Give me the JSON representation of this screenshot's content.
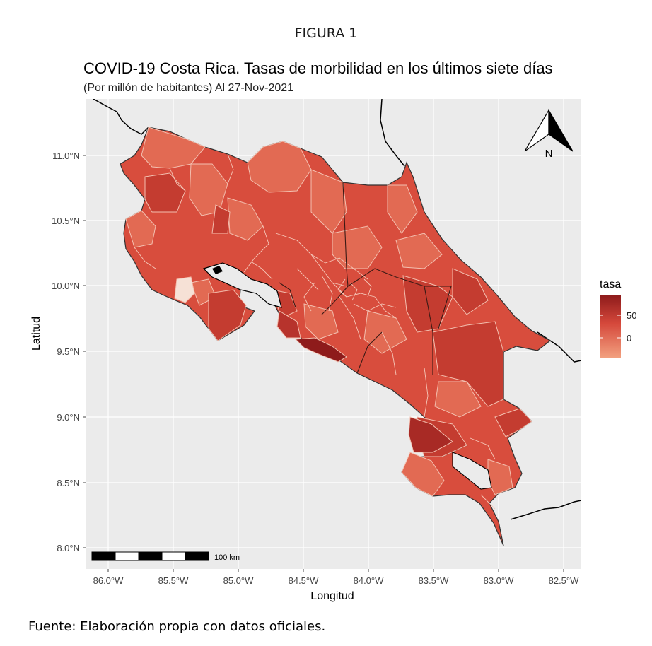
{
  "figure_label": "FIGURA 1",
  "title": "COVID-19 Costa Rica. Tasas de morbilidad en los últimos siete días",
  "subtitle": "(Por millón de habitantes) Al 27-Nov-2021",
  "axes": {
    "x_title": "Longitud",
    "y_title": "Latitud",
    "x_ticks": [
      "86.0°W",
      "85.5°W",
      "85.0°W",
      "84.5°W",
      "84.0°W",
      "83.5°W",
      "83.0°W",
      "82.5°W"
    ],
    "y_ticks": [
      "11.0°N",
      "10.5°N",
      "10.0°N",
      "9.5°N",
      "9.0°N",
      "8.5°N",
      "8.0°N"
    ]
  },
  "legend": {
    "title": "tasa",
    "labels": [
      "50",
      "0"
    ],
    "colors": {
      "high": "#8e1b1b",
      "mid": "#d5483b",
      "low": "#f2a07f"
    }
  },
  "scale_bar": {
    "label": "100 km"
  },
  "north_arrow": {
    "label": "N"
  },
  "colors": {
    "panel_bg": "#ebebeb",
    "grid": "#ffffff",
    "fill_typical": "#d84d3d",
    "fill_light": "#e26a53",
    "fill_dark": "#c43c30",
    "fill_darkest": "#8e1b1b",
    "fill_palest": "#f6e1d6"
  },
  "source_note": "Fuente: Elaboración propia con datos oficiales."
}
